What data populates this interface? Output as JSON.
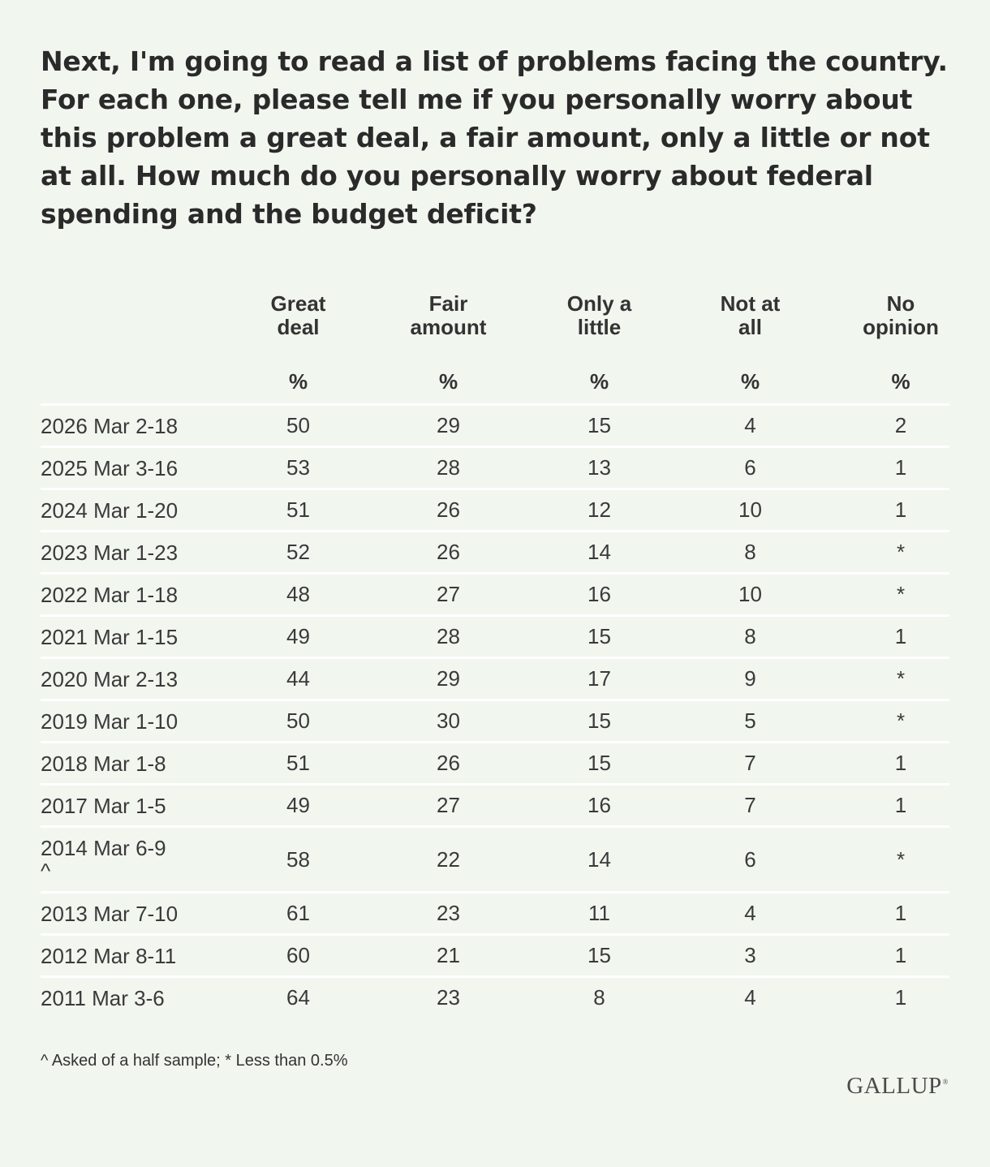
{
  "question": "Next, I'm going to read a list of problems facing the country. For each one, please tell me if you personally worry about this problem a great deal, a fair amount, only a little or not at all. How much do you personally worry about federal spending and the budget deficit?",
  "columns": [
    {
      "line1": "Great",
      "line2": "deal",
      "unit": "%"
    },
    {
      "line1": "Fair",
      "line2": "amount",
      "unit": "%"
    },
    {
      "line1": "Only a",
      "line2": "little",
      "unit": "%"
    },
    {
      "line1": "Not at",
      "line2": "all",
      "unit": "%"
    },
    {
      "line1": "No",
      "line2": "opinion",
      "unit": "%"
    }
  ],
  "chart_data": {
    "type": "table",
    "columns": [
      "Great deal",
      "Fair amount",
      "Only a little",
      "Not at all",
      "No opinion"
    ],
    "unit": "%",
    "rows": [
      {
        "label": "2026 Mar 2-18",
        "values": [
          "50",
          "29",
          "15",
          "4",
          "2"
        ]
      },
      {
        "label": "2025 Mar 3-16",
        "values": [
          "53",
          "28",
          "13",
          "6",
          "1"
        ]
      },
      {
        "label": "2024 Mar 1-20",
        "values": [
          "51",
          "26",
          "12",
          "10",
          "1"
        ]
      },
      {
        "label": "2023 Mar 1-23",
        "values": [
          "52",
          "26",
          "14",
          "8",
          "*"
        ]
      },
      {
        "label": "2022 Mar 1-18",
        "values": [
          "48",
          "27",
          "16",
          "10",
          "*"
        ]
      },
      {
        "label": "2021 Mar 1-15",
        "values": [
          "49",
          "28",
          "15",
          "8",
          "1"
        ]
      },
      {
        "label": "2020 Mar 2-13",
        "values": [
          "44",
          "29",
          "17",
          "9",
          "*"
        ]
      },
      {
        "label": "2019 Mar 1-10",
        "values": [
          "50",
          "30",
          "15",
          "5",
          "*"
        ]
      },
      {
        "label": "2018 Mar 1-8",
        "values": [
          "51",
          "26",
          "15",
          "7",
          "1"
        ]
      },
      {
        "label": "2017 Mar 1-5",
        "values": [
          "49",
          "27",
          "16",
          "7",
          "1"
        ]
      },
      {
        "label": "2014 Mar 6-9",
        "mark": "^",
        "values": [
          "58",
          "22",
          "14",
          "6",
          "*"
        ]
      },
      {
        "label": "2013 Mar 7-10",
        "values": [
          "61",
          "23",
          "11",
          "4",
          "1"
        ]
      },
      {
        "label": "2012 Mar 8-11",
        "values": [
          "60",
          "21",
          "15",
          "3",
          "1"
        ]
      },
      {
        "label": "2011 Mar 3-6",
        "values": [
          "64",
          "23",
          "8",
          "4",
          "1"
        ]
      }
    ]
  },
  "footnote": "^ Asked of a half sample; * Less than 0.5%",
  "logo": {
    "text": "GALLUP",
    "reg": "®"
  }
}
